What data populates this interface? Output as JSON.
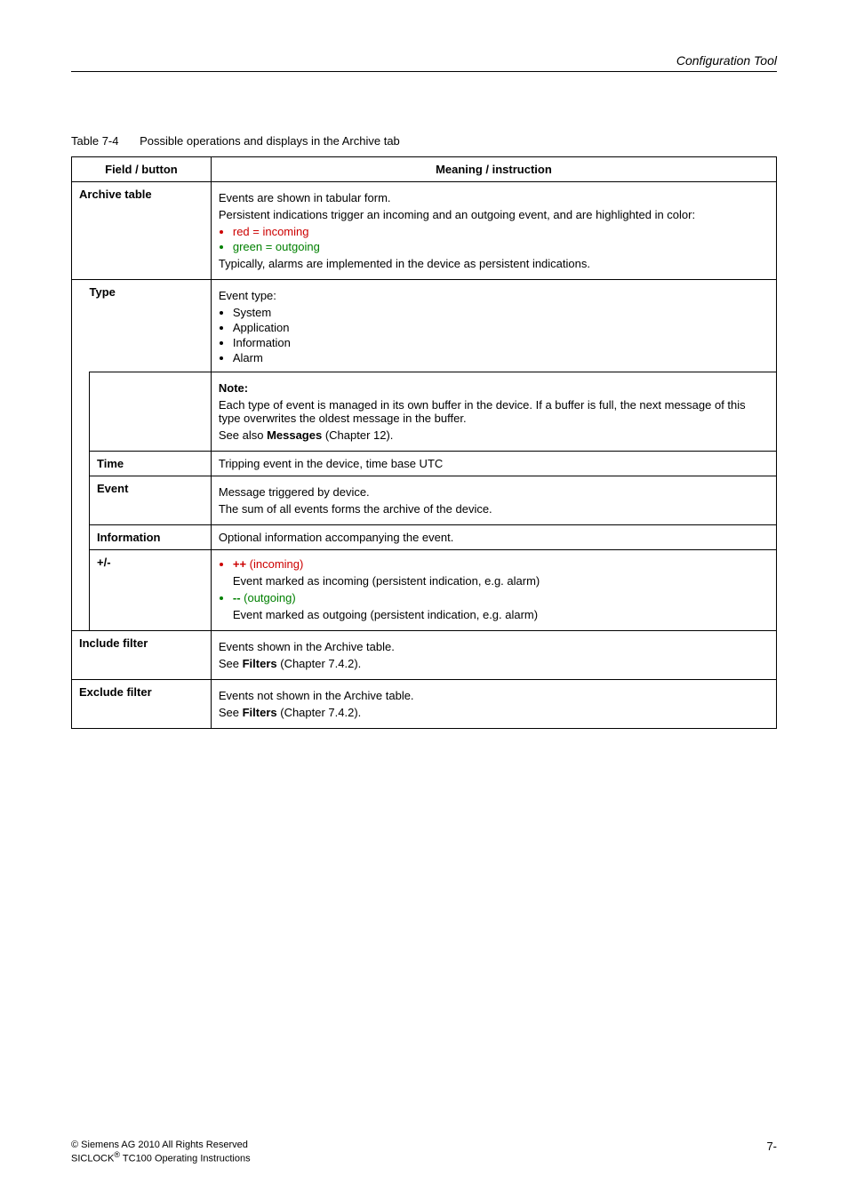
{
  "header": {
    "section": "Configuration Tool"
  },
  "caption": {
    "num": "Table 7-4",
    "text": "Possible operations and displays in the Archive tab"
  },
  "th": {
    "field": "Field / button",
    "meaning": "Meaning / instruction"
  },
  "rows": {
    "archive": {
      "label": "Archive table",
      "l1": "Events are shown in tabular form.",
      "l2": "Persistent indications trigger an incoming and an outgoing event, and are highlighted in color:",
      "b1": "red = incoming",
      "b2": "green = outgoing",
      "l3": "Typically, alarms are implemented in the device as persistent indications."
    },
    "type": {
      "label": "Type",
      "l1": "Event type:",
      "b1": "System",
      "b2": "Application",
      "b3": "Information",
      "b4": "Alarm",
      "note_h": "Note:",
      "note_t": "Each type of event is managed in its own buffer in the device. If a buffer is full, the next message of this type overwrites the oldest message in the buffer.",
      "see_pre": "See also ",
      "see_bold": "Messages",
      "see_post": " (Chapter 12)."
    },
    "time": {
      "label": "Time",
      "l1": "Tripping event in the device, time base UTC"
    },
    "event": {
      "label": "Event",
      "l1": "Message triggered by device.",
      "l2": "The sum of all events forms the archive of the device."
    },
    "info": {
      "label": "Information",
      "l1": "Optional information accompanying the event."
    },
    "pm": {
      "label": "+/-",
      "b1a": "++",
      "b1b": " (incoming)",
      "l1": "Event marked as incoming (persistent indication, e.g. alarm)",
      "b2a": "--",
      "b2b": " (outgoing)",
      "l2": "Event marked as outgoing (persistent indication, e.g. alarm)"
    },
    "incl": {
      "label": "Include filter",
      "l1": "Events shown in the Archive table.",
      "see_pre": "See ",
      "see_bold": "Filters",
      "see_post": " (Chapter 7.4.2)."
    },
    "excl": {
      "label": "Exclude filter",
      "l1": "Events not shown in the Archive table.",
      "see_pre": "See ",
      "see_bold": "Filters",
      "see_post": " (Chapter 7.4.2)."
    }
  },
  "footer": {
    "l1": "© Siemens AG 2010 All Rights Reserved",
    "l2a": "SICLOCK",
    "l2sup": "®",
    "l2b": " TC100 Operating Instructions",
    "page": "7-"
  }
}
